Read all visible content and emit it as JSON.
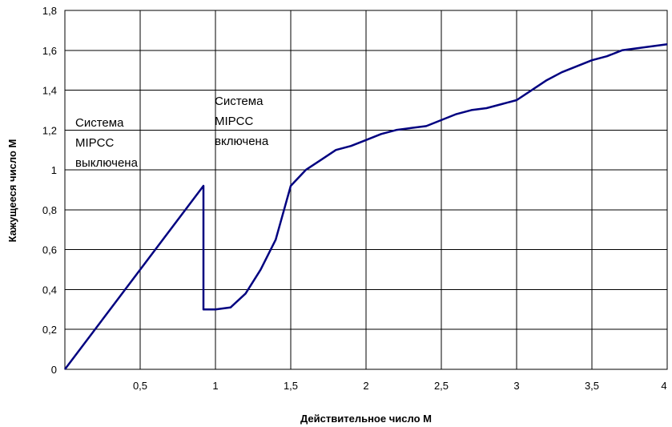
{
  "chart_data": {
    "type": "line",
    "xlabel": "Действительное число М",
    "ylabel": "Кажущееся число М",
    "xlim": [
      0,
      4
    ],
    "ylim": [
      0,
      1.8
    ],
    "grid": true,
    "x_ticks": [
      {
        "value": 0.5,
        "label": "0,5"
      },
      {
        "value": 1,
        "label": "1"
      },
      {
        "value": 1.5,
        "label": "1,5"
      },
      {
        "value": 2,
        "label": "2"
      },
      {
        "value": 2.5,
        "label": "2,5"
      },
      {
        "value": 3,
        "label": "3"
      },
      {
        "value": 3.5,
        "label": "3,5"
      },
      {
        "value": 4,
        "label": "4"
      }
    ],
    "y_ticks": [
      {
        "value": 0,
        "label": "0"
      },
      {
        "value": 0.2,
        "label": "0,2"
      },
      {
        "value": 0.4,
        "label": "0,4"
      },
      {
        "value": 0.6,
        "label": "0,6"
      },
      {
        "value": 0.8,
        "label": "0,8"
      },
      {
        "value": 1,
        "label": "1"
      },
      {
        "value": 1.2,
        "label": "1,2"
      },
      {
        "value": 1.4,
        "label": "1,4"
      },
      {
        "value": 1.6,
        "label": "1,6"
      },
      {
        "value": 1.8,
        "label": "1,8"
      }
    ],
    "series": [
      {
        "color": "#000080",
        "points": [
          [
            0,
            0
          ],
          [
            0.92,
            0.92
          ],
          [
            0.92,
            0.3
          ],
          [
            1.0,
            0.3
          ],
          [
            1.1,
            0.31
          ],
          [
            1.2,
            0.38
          ],
          [
            1.3,
            0.5
          ],
          [
            1.4,
            0.65
          ],
          [
            1.5,
            0.92
          ],
          [
            1.6,
            1.0
          ],
          [
            1.7,
            1.05
          ],
          [
            1.8,
            1.1
          ],
          [
            1.9,
            1.12
          ],
          [
            2.0,
            1.15
          ],
          [
            2.1,
            1.18
          ],
          [
            2.2,
            1.2
          ],
          [
            2.3,
            1.21
          ],
          [
            2.4,
            1.22
          ],
          [
            2.5,
            1.25
          ],
          [
            2.6,
            1.28
          ],
          [
            2.7,
            1.3
          ],
          [
            2.8,
            1.31
          ],
          [
            2.9,
            1.33
          ],
          [
            3.0,
            1.35
          ],
          [
            3.1,
            1.4
          ],
          [
            3.2,
            1.45
          ],
          [
            3.3,
            1.49
          ],
          [
            3.4,
            1.52
          ],
          [
            3.5,
            1.55
          ],
          [
            3.6,
            1.57
          ],
          [
            3.7,
            1.6
          ],
          [
            3.8,
            1.61
          ],
          [
            3.9,
            1.62
          ],
          [
            4.0,
            1.63
          ]
        ]
      }
    ],
    "annotations": [
      {
        "lines": [
          "Система",
          "MIPCC",
          "выключена"
        ]
      },
      {
        "lines": [
          "Система",
          "MIPCC",
          "включена"
        ]
      }
    ]
  }
}
